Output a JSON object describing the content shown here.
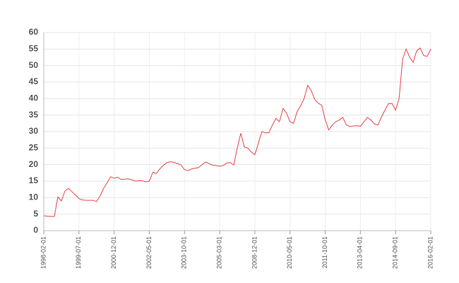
{
  "chart_data": {
    "type": "line",
    "categories": [
      "1998-02-01",
      null,
      null,
      null,
      null,
      null,
      null,
      null,
      null,
      null,
      "1999-07-01",
      null,
      null,
      null,
      null,
      null,
      null,
      null,
      null,
      null,
      "2000-12-01",
      null,
      null,
      null,
      null,
      null,
      null,
      null,
      null,
      null,
      "2002-05-01",
      null,
      null,
      null,
      null,
      null,
      null,
      null,
      null,
      null,
      "2003-10-01",
      null,
      null,
      null,
      null,
      null,
      null,
      null,
      null,
      null,
      "2005-03-01",
      null,
      null,
      null,
      null,
      null,
      null,
      null,
      null,
      null,
      "2008-12-01",
      null,
      null,
      null,
      null,
      null,
      null,
      null,
      null,
      null,
      "2010-05-01",
      null,
      null,
      null,
      null,
      null,
      null,
      null,
      null,
      null,
      "2011-10-01",
      null,
      null,
      null,
      null,
      null,
      null,
      null,
      null,
      null,
      "2013-04-01",
      null,
      null,
      null,
      null,
      null,
      null,
      null,
      null,
      null,
      "2014-09-01",
      null,
      null,
      null,
      null,
      null,
      null,
      null,
      null,
      null,
      "2016-02-01"
    ],
    "values": [
      4.5,
      4.4,
      4.3,
      4.3,
      10.2,
      9,
      12,
      12.8,
      11.8,
      10.8,
      9.7,
      9.3,
      9.2,
      9.2,
      9.2,
      8.8,
      10.5,
      12.8,
      14.5,
      16.3,
      15.9,
      16.2,
      15.5,
      15.6,
      15.7,
      15.4,
      15,
      15.1,
      15.1,
      14.8,
      15,
      17.7,
      17.3,
      18.7,
      19.8,
      20.6,
      20.9,
      20.7,
      20.3,
      19.9,
      18.5,
      18.2,
      18.7,
      18.9,
      19.1,
      20,
      20.8,
      20.3,
      19.8,
      19.7,
      19.5,
      19.7,
      20.5,
      20.6,
      19.9,
      25,
      29.5,
      25.4,
      25,
      23.8,
      23,
      26.5,
      30,
      29.6,
      29.7,
      32,
      34,
      33,
      37,
      35.6,
      33,
      32.5,
      36,
      37.8,
      40,
      44,
      42.5,
      39.8,
      38.6,
      38,
      33.5,
      30.5,
      32,
      33,
      33.5,
      34.3,
      32,
      31.5,
      31.7,
      31.8,
      31.6,
      33,
      34.3,
      33.5,
      32.3,
      32,
      34.5,
      36.5,
      38.5,
      38.5,
      36.5,
      40,
      52,
      55,
      52.5,
      51,
      54.5,
      55.3,
      53,
      52.8,
      55
    ],
    "color": "#e8454a",
    "ylim": [
      0,
      60
    ],
    "yticks": [
      0,
      5,
      10,
      15,
      20,
      25,
      30,
      35,
      40,
      45,
      50,
      55,
      60
    ],
    "grid": true
  }
}
